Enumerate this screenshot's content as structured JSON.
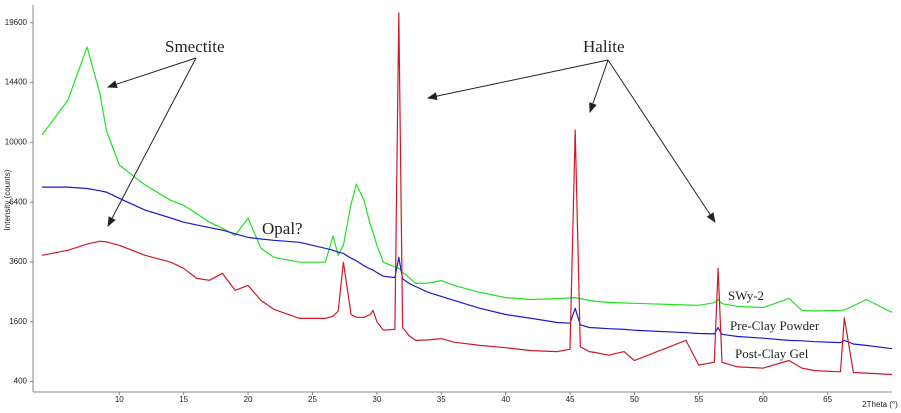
{
  "chart_data": {
    "type": "line",
    "y_label": "Intensity (counts)",
    "x_label": "2Theta (°)",
    "y_scale": "sqrt",
    "xlim": [
      3.3,
      70
    ],
    "xticks": [
      10,
      15,
      20,
      25,
      30,
      35,
      40,
      45,
      50,
      55,
      60,
      65
    ],
    "ylim": [
      272,
      21300
    ],
    "yticks": [
      400,
      1600,
      3600,
      6400,
      10000,
      14400,
      19600
    ],
    "grid": false,
    "annotations": [
      "Smectite",
      "Halite",
      "Opal?"
    ],
    "x": [
      4,
      6,
      7.5,
      8.5,
      9,
      10,
      12,
      14,
      15,
      16,
      17,
      18,
      19,
      20,
      21,
      22,
      24,
      26,
      26.6,
      27,
      27.4,
      28,
      28.4,
      29,
      29.5,
      29.7,
      30,
      30.5,
      31.4,
      31.7,
      32,
      32.5,
      33,
      34,
      35,
      36,
      38,
      40,
      42,
      44,
      45,
      45.4,
      45.8,
      46.5,
      47,
      48,
      49.2,
      50,
      54,
      55,
      56.2,
      56.5,
      56.8,
      58,
      60,
      62,
      63,
      64,
      66,
      66.3,
      67,
      68,
      70
    ],
    "series": [
      {
        "name": "SWy-2",
        "color": "#22e022",
        "values": [
          10500,
          13000,
          17400,
          13500,
          10800,
          8540,
          7350,
          6500,
          6240,
          5800,
          5370,
          5080,
          4750,
          5570,
          4170,
          3790,
          3590,
          3590,
          4710,
          3870,
          4300,
          6300,
          7400,
          6500,
          5230,
          4900,
          4300,
          3590,
          3400,
          3350,
          3200,
          3000,
          2790,
          2800,
          2890,
          2720,
          2480,
          2310,
          2250,
          2280,
          2300,
          2310,
          2280,
          2220,
          2190,
          2160,
          2140,
          2130,
          2080,
          2070,
          2150,
          2250,
          2120,
          2040,
          2000,
          2280,
          1920,
          1900,
          1920,
          1930,
          2050,
          2250,
          1860
        ]
      },
      {
        "name": "Pre-Clay Powder",
        "color": "#1a1acc",
        "values": [
          7230,
          7230,
          7150,
          7020,
          6950,
          6610,
          5980,
          5580,
          5370,
          5240,
          5110,
          4990,
          4820,
          4650,
          4580,
          4520,
          4430,
          4170,
          4080,
          4000,
          3950,
          3750,
          3650,
          3450,
          3320,
          3280,
          3190,
          3050,
          3000,
          3790,
          2950,
          2790,
          2680,
          2480,
          2350,
          2220,
          1980,
          1800,
          1690,
          1580,
          1560,
          1980,
          1520,
          1450,
          1440,
          1420,
          1400,
          1380,
          1320,
          1300,
          1290,
          1450,
          1280,
          1230,
          1190,
          1140,
          1130,
          1110,
          1090,
          1140,
          1060,
          1030,
          960
        ]
      },
      {
        "name": "Post-Clay Gel",
        "color": "#cc1a2a",
        "values": [
          3870,
          4080,
          4350,
          4480,
          4450,
          4300,
          3870,
          3590,
          3350,
          2970,
          2900,
          3160,
          2550,
          2720,
          2220,
          1950,
          1690,
          1690,
          1750,
          1900,
          3590,
          1800,
          1720,
          1720,
          1800,
          1920,
          1600,
          1380,
          1400,
          20540,
          1450,
          1250,
          1140,
          1150,
          1180,
          1100,
          1030,
          980,
          920,
          900,
          950,
          10840,
          1000,
          900,
          880,
          830,
          900,
          730,
          1140,
          650,
          700,
          3350,
          700,
          620,
          600,
          730,
          600,
          560,
          540,
          1710,
          530,
          520,
          500
        ]
      }
    ]
  }
}
